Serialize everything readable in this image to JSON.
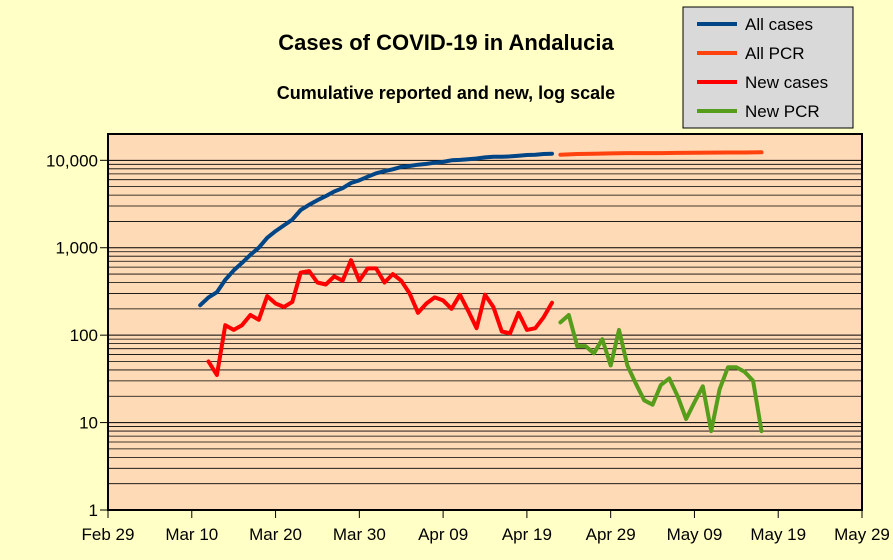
{
  "chart_data": {
    "type": "line",
    "title": "Cases of COVID-19 in Andalucia",
    "subtitle": "Cumulative reported and new, log scale",
    "xlabel": "",
    "ylabel": "",
    "y_scale": "log",
    "ylim": [
      1,
      20000
    ],
    "xlim": [
      "2020-02-29",
      "2020-05-29"
    ],
    "x_tick_labels": [
      "Feb 29",
      "Mar 10",
      "Mar 20",
      "Mar 30",
      "Apr 09",
      "Apr 19",
      "Apr 29",
      "May 09",
      "May 19",
      "May 29"
    ],
    "x_tick_dates": [
      "2020-02-29",
      "2020-03-10",
      "2020-03-20",
      "2020-03-30",
      "2020-04-09",
      "2020-04-19",
      "2020-04-29",
      "2020-05-09",
      "2020-05-19",
      "2020-05-29"
    ],
    "y_tick_values": [
      1,
      10,
      100,
      1000,
      10000
    ],
    "y_tick_labels": [
      "1",
      "10",
      "100",
      "1,000",
      "10,000"
    ],
    "grid": true,
    "legend_position": "top-right",
    "plot_background": "#ffdab6",
    "page_background": "#ffffc6",
    "legend_background": "#d9d9d9",
    "series": [
      {
        "name": "All cases",
        "color": "#004586",
        "x": [
          "2020-03-11",
          "2020-03-12",
          "2020-03-13",
          "2020-03-14",
          "2020-03-15",
          "2020-03-16",
          "2020-03-17",
          "2020-03-18",
          "2020-03-19",
          "2020-03-20",
          "2020-03-21",
          "2020-03-22",
          "2020-03-23",
          "2020-03-24",
          "2020-03-25",
          "2020-03-26",
          "2020-03-27",
          "2020-03-28",
          "2020-03-29",
          "2020-03-30",
          "2020-03-31",
          "2020-04-01",
          "2020-04-02",
          "2020-04-03",
          "2020-04-04",
          "2020-04-05",
          "2020-04-06",
          "2020-04-07",
          "2020-04-08",
          "2020-04-09",
          "2020-04-10",
          "2020-04-11",
          "2020-04-12",
          "2020-04-13",
          "2020-04-14",
          "2020-04-15",
          "2020-04-16",
          "2020-04-17",
          "2020-04-18",
          "2020-04-19",
          "2020-04-20",
          "2020-04-21",
          "2020-04-22"
        ],
        "values": [
          220,
          270,
          310,
          430,
          550,
          670,
          830,
          1000,
          1300,
          1550,
          1800,
          2100,
          2700,
          3100,
          3500,
          3900,
          4400,
          4800,
          5500,
          5900,
          6500,
          7100,
          7500,
          7900,
          8400,
          8600,
          8900,
          9100,
          9400,
          9600,
          10000,
          10100,
          10300,
          10500,
          10800,
          11000,
          11000,
          11100,
          11300,
          11500,
          11600,
          11800,
          11900
        ]
      },
      {
        "name": "All PCR",
        "color": "#ff420e",
        "x": [
          "2020-04-23",
          "2020-04-25",
          "2020-04-27",
          "2020-04-29",
          "2020-05-01",
          "2020-05-03",
          "2020-05-05",
          "2020-05-07",
          "2020-05-09",
          "2020-05-11",
          "2020-05-13",
          "2020-05-15",
          "2020-05-17"
        ],
        "values": [
          11600,
          11800,
          11900,
          12000,
          12100,
          12100,
          12100,
          12150,
          12200,
          12250,
          12300,
          12300,
          12350
        ]
      },
      {
        "name": "New cases",
        "color": "#ff0000",
        "x": [
          "2020-03-12",
          "2020-03-13",
          "2020-03-14",
          "2020-03-15",
          "2020-03-16",
          "2020-03-17",
          "2020-03-18",
          "2020-03-19",
          "2020-03-20",
          "2020-03-21",
          "2020-03-22",
          "2020-03-23",
          "2020-03-24",
          "2020-03-25",
          "2020-03-26",
          "2020-03-27",
          "2020-03-28",
          "2020-03-29",
          "2020-03-30",
          "2020-03-31",
          "2020-04-01",
          "2020-04-02",
          "2020-04-03",
          "2020-04-04",
          "2020-04-05",
          "2020-04-06",
          "2020-04-07",
          "2020-04-08",
          "2020-04-09",
          "2020-04-10",
          "2020-04-11",
          "2020-04-12",
          "2020-04-13",
          "2020-04-14",
          "2020-04-15",
          "2020-04-16",
          "2020-04-17",
          "2020-04-18",
          "2020-04-19",
          "2020-04-20",
          "2020-04-21",
          "2020-04-22"
        ],
        "values": [
          50,
          35,
          130,
          115,
          130,
          170,
          150,
          280,
          230,
          210,
          240,
          520,
          540,
          400,
          380,
          470,
          420,
          720,
          420,
          580,
          580,
          400,
          500,
          420,
          300,
          180,
          230,
          270,
          250,
          200,
          290,
          190,
          120,
          290,
          210,
          110,
          105,
          180,
          115,
          120,
          160,
          235
        ]
      },
      {
        "name": "New PCR",
        "color": "#579d1c",
        "x": [
          "2020-04-23",
          "2020-04-24",
          "2020-04-25",
          "2020-04-26",
          "2020-04-27",
          "2020-04-28",
          "2020-04-29",
          "2020-04-30",
          "2020-05-01",
          "2020-05-02",
          "2020-05-03",
          "2020-05-04",
          "2020-05-05",
          "2020-05-06",
          "2020-05-07",
          "2020-05-08",
          "2020-05-09",
          "2020-05-10",
          "2020-05-11",
          "2020-05-12",
          "2020-05-13",
          "2020-05-14",
          "2020-05-15",
          "2020-05-16",
          "2020-05-17"
        ],
        "values": [
          140,
          170,
          75,
          75,
          62,
          90,
          45,
          115,
          45,
          28,
          18,
          16,
          27,
          32,
          20,
          11,
          17,
          26,
          8,
          24,
          43,
          43,
          38,
          30,
          8
        ]
      }
    ]
  }
}
